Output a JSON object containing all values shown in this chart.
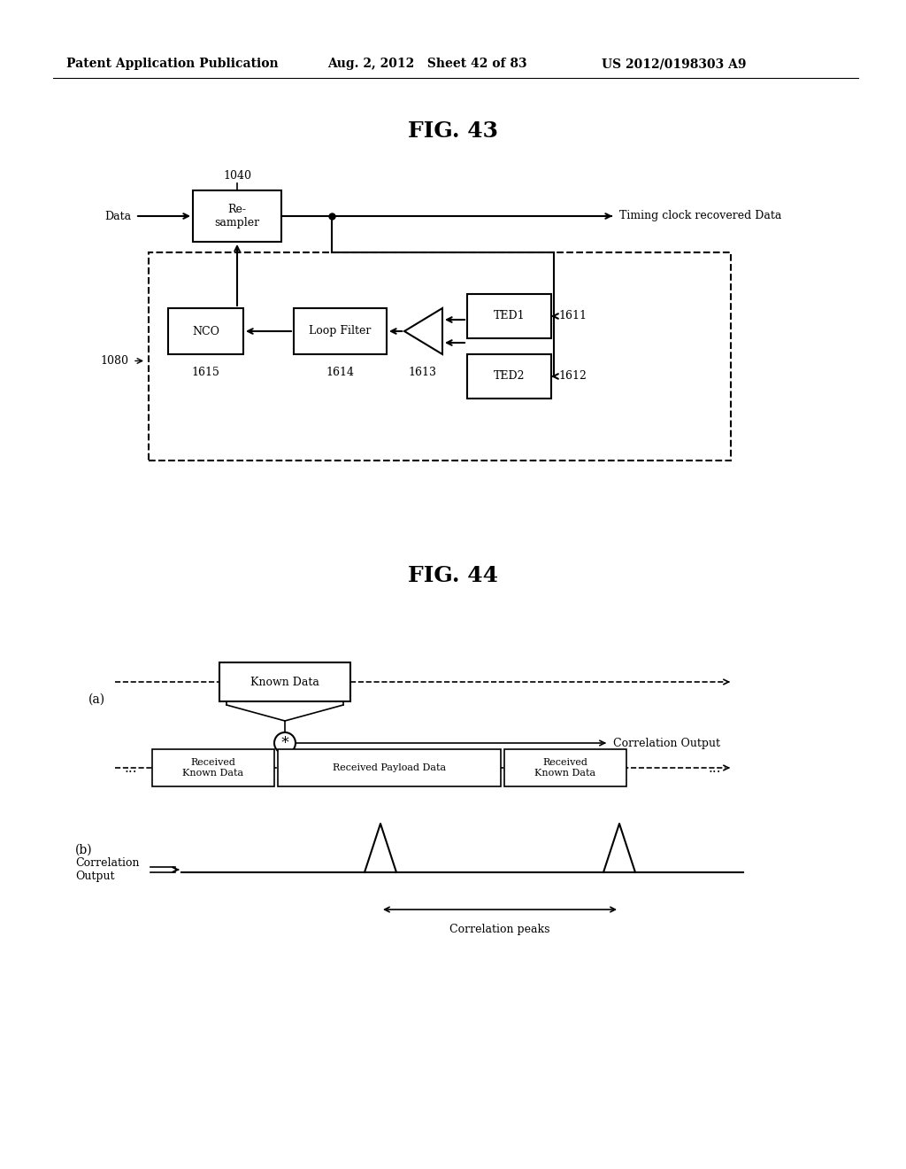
{
  "header_left": "Patent Application Publication",
  "header_mid": "Aug. 2, 2012   Sheet 42 of 83",
  "header_right": "US 2012/0198303 A9",
  "fig43_title": "FIG. 43",
  "fig44_title": "FIG. 44",
  "bg_color": "#ffffff",
  "text_color": "#000000"
}
